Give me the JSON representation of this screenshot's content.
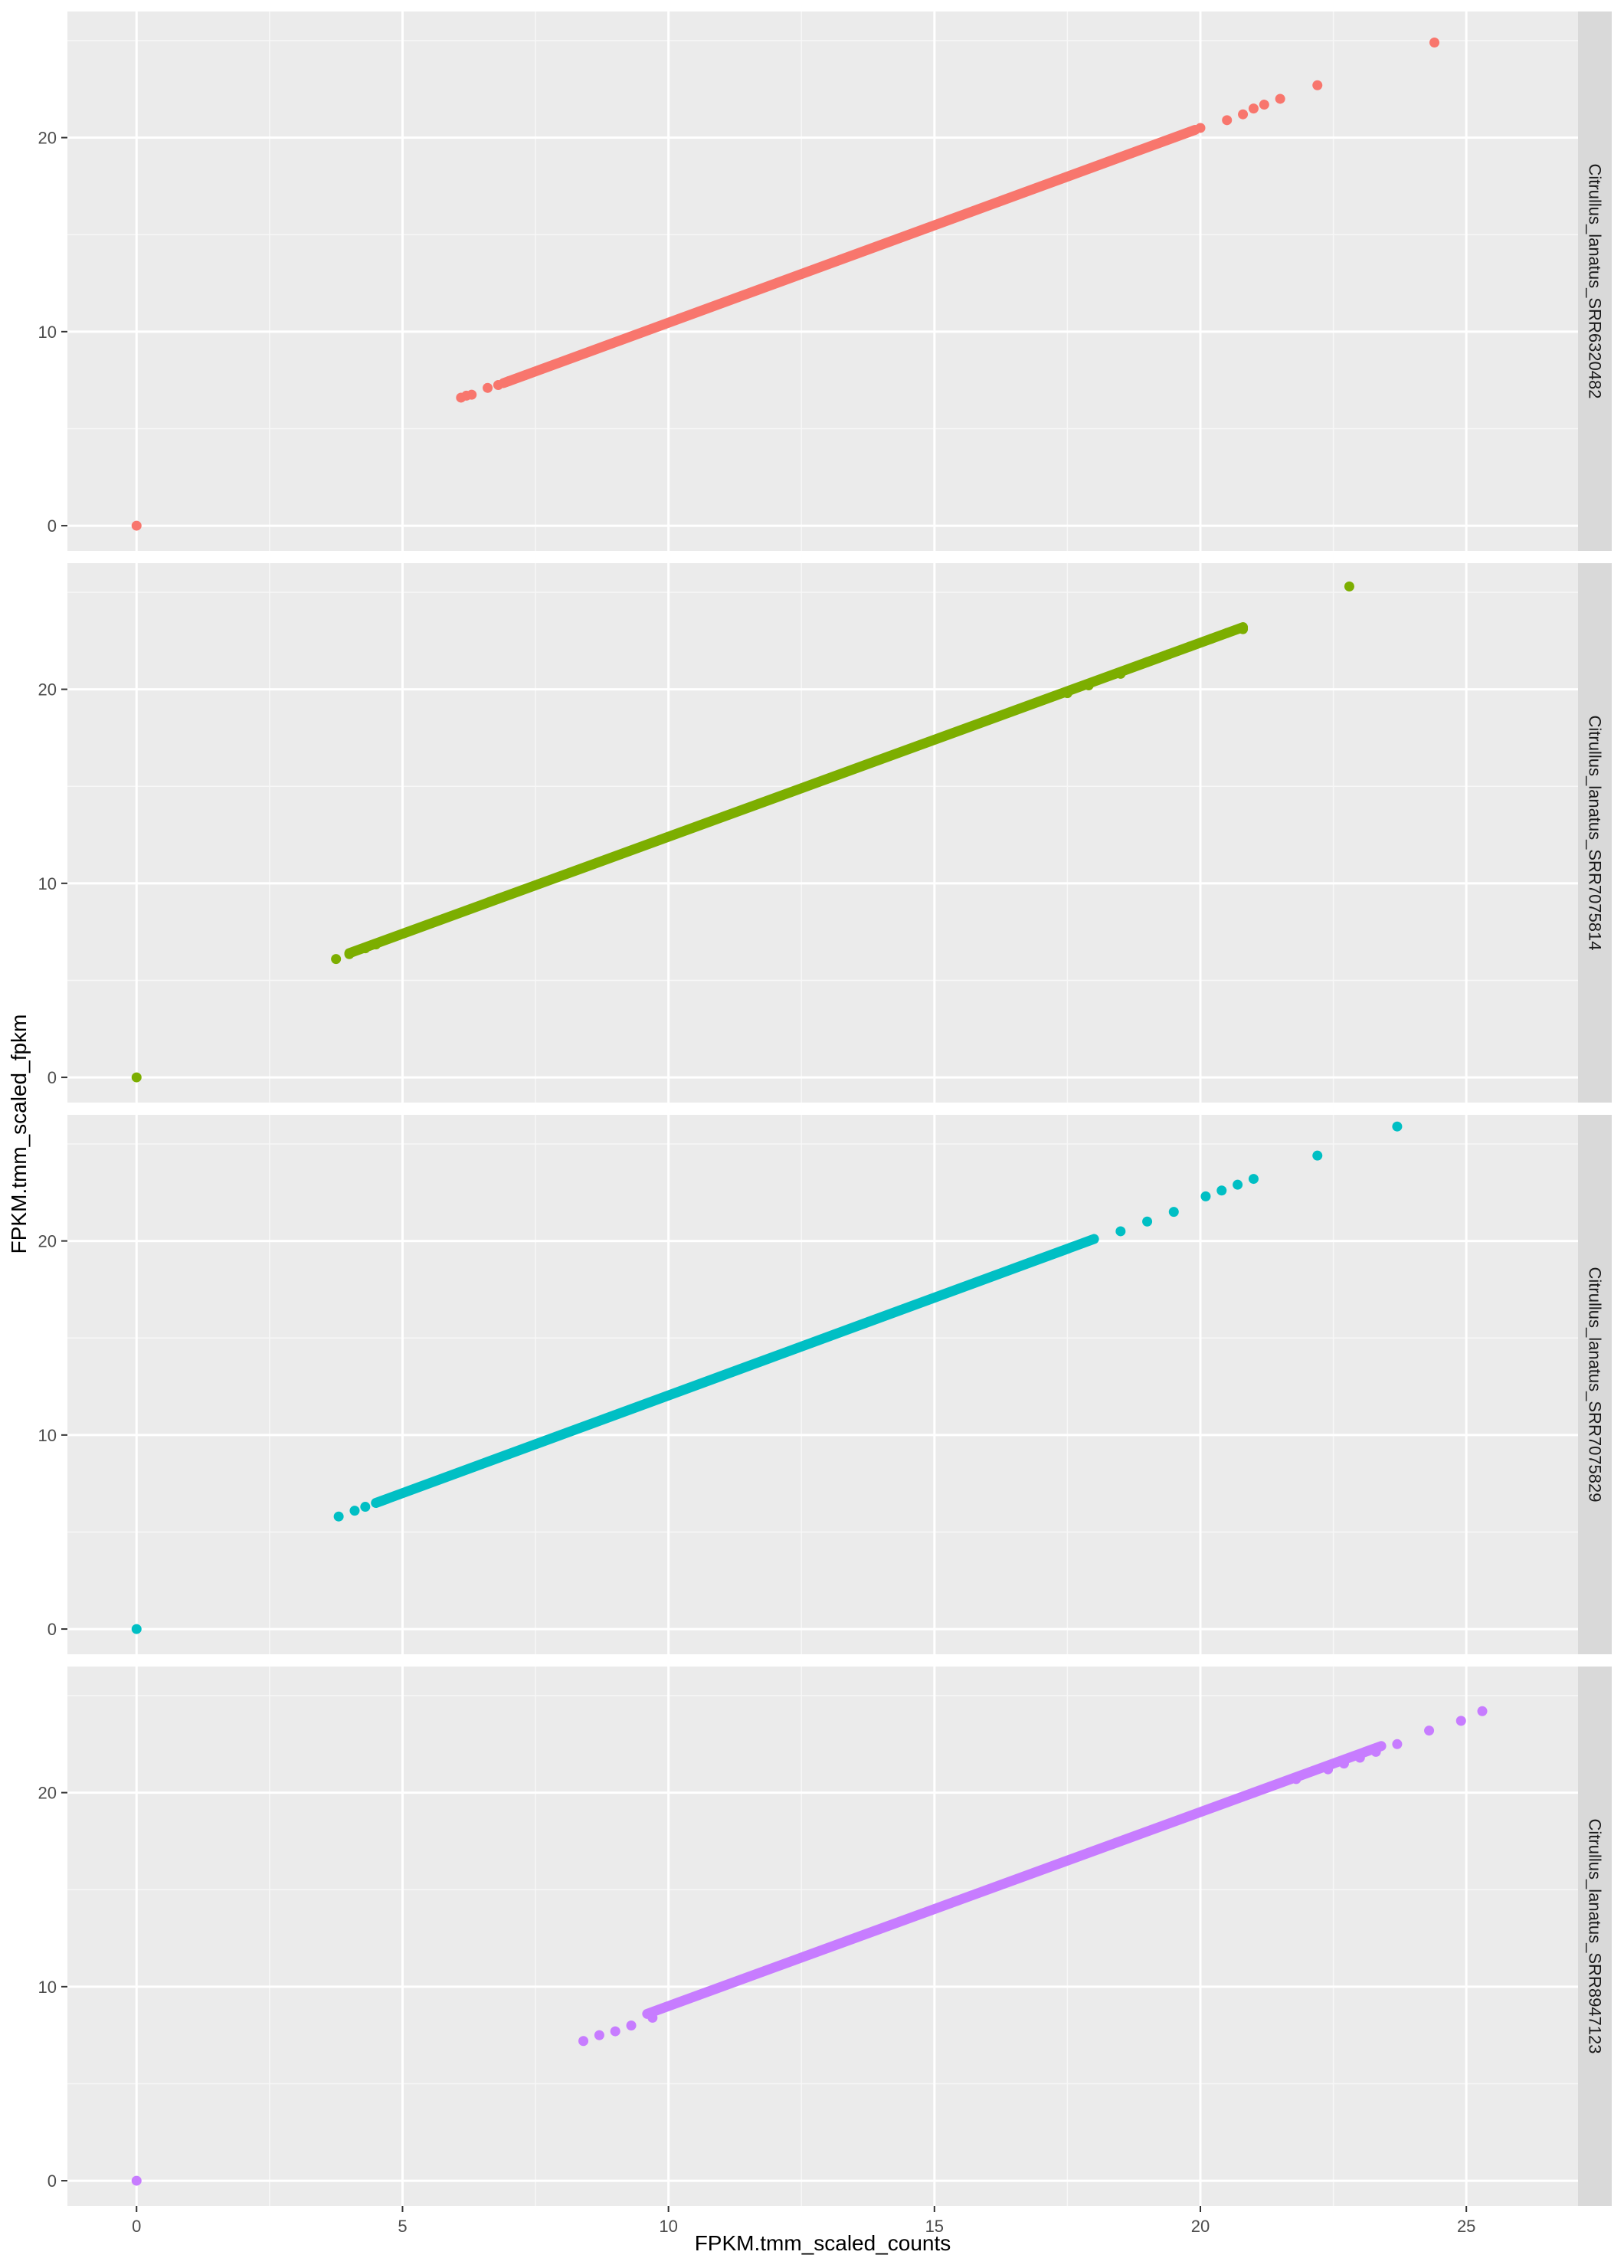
{
  "chart_data": {
    "type": "scatter",
    "layout": "facet_grid rows",
    "xlabel": "FPKM.tmm_scaled_counts",
    "ylabel": "FPKM.tmm_scaled_fpkm",
    "xlim": [
      -1.3,
      27.1
    ],
    "ylim": [
      -1.3,
      26.5
    ],
    "x_ticks": [
      0,
      5,
      10,
      15,
      20,
      25
    ],
    "y_ticks": [
      0,
      10,
      20
    ],
    "grid": true,
    "legend": "none",
    "panels": [
      {
        "name": "Citrullus_lanatus_SRR6320482",
        "color": "#F8766D",
        "points": [
          [
            0,
            0
          ],
          [
            6.1,
            6.6
          ],
          [
            6.2,
            6.7
          ],
          [
            6.3,
            6.75
          ],
          [
            6.6,
            7.1
          ],
          [
            6.8,
            7.25
          ],
          [
            7.0,
            7.45
          ],
          [
            7.3,
            7.75
          ],
          [
            20.0,
            20.5
          ],
          [
            20.5,
            20.9
          ],
          [
            20.8,
            21.2
          ],
          [
            21.0,
            21.5
          ],
          [
            21.2,
            21.7
          ],
          [
            21.5,
            22.0
          ],
          [
            22.2,
            22.7
          ],
          [
            24.4,
            24.9
          ]
        ],
        "line_start": [
          6.9,
          7.35
        ],
        "line_end": [
          19.9,
          20.4
        ]
      },
      {
        "name": "Citrullus_lanatus_SRR7075814",
        "color": "#7CAE00",
        "points": [
          [
            0,
            0
          ],
          [
            3.75,
            6.1
          ],
          [
            4.0,
            6.35
          ],
          [
            4.3,
            6.65
          ],
          [
            4.5,
            6.85
          ],
          [
            17.5,
            19.8
          ],
          [
            17.9,
            20.2
          ],
          [
            18.5,
            20.8
          ],
          [
            19.0,
            21.4
          ],
          [
            19.4,
            21.8
          ],
          [
            19.8,
            22.2
          ],
          [
            20.2,
            22.6
          ],
          [
            20.5,
            22.9
          ],
          [
            20.8,
            23.1
          ],
          [
            22.8,
            25.3
          ]
        ],
        "line_start": [
          4.0,
          6.4
        ],
        "line_end": [
          20.8,
          23.2
        ]
      },
      {
        "name": "Citrullus_lanatus_SRR7075829",
        "color": "#00BFC4",
        "points": [
          [
            0,
            0
          ],
          [
            3.8,
            5.8
          ],
          [
            4.1,
            6.1
          ],
          [
            4.3,
            6.3
          ],
          [
            4.6,
            6.6
          ],
          [
            18.5,
            20.5
          ],
          [
            19.0,
            21.0
          ],
          [
            19.5,
            21.5
          ],
          [
            20.1,
            22.3
          ],
          [
            20.4,
            22.6
          ],
          [
            20.7,
            22.9
          ],
          [
            21.0,
            23.2
          ],
          [
            22.2,
            24.4
          ],
          [
            23.7,
            25.9
          ]
        ],
        "line_start": [
          4.5,
          6.5
        ],
        "line_end": [
          18.0,
          20.1
        ]
      },
      {
        "name": "Citrullus_lanatus_SRR8947123",
        "color": "#C77CFF",
        "points": [
          [
            0,
            0
          ],
          [
            8.4,
            7.2
          ],
          [
            8.7,
            7.5
          ],
          [
            9.0,
            7.7
          ],
          [
            9.3,
            8.0
          ],
          [
            9.7,
            8.4
          ],
          [
            21.0,
            20.0
          ],
          [
            21.8,
            20.7
          ],
          [
            22.4,
            21.2
          ],
          [
            22.7,
            21.5
          ],
          [
            23.0,
            21.8
          ],
          [
            23.3,
            22.1
          ],
          [
            23.7,
            22.5
          ],
          [
            24.3,
            23.2
          ],
          [
            24.9,
            23.7
          ],
          [
            25.3,
            24.2
          ]
        ],
        "line_start": [
          9.6,
          8.6
        ],
        "line_end": [
          23.4,
          22.4
        ]
      }
    ]
  }
}
